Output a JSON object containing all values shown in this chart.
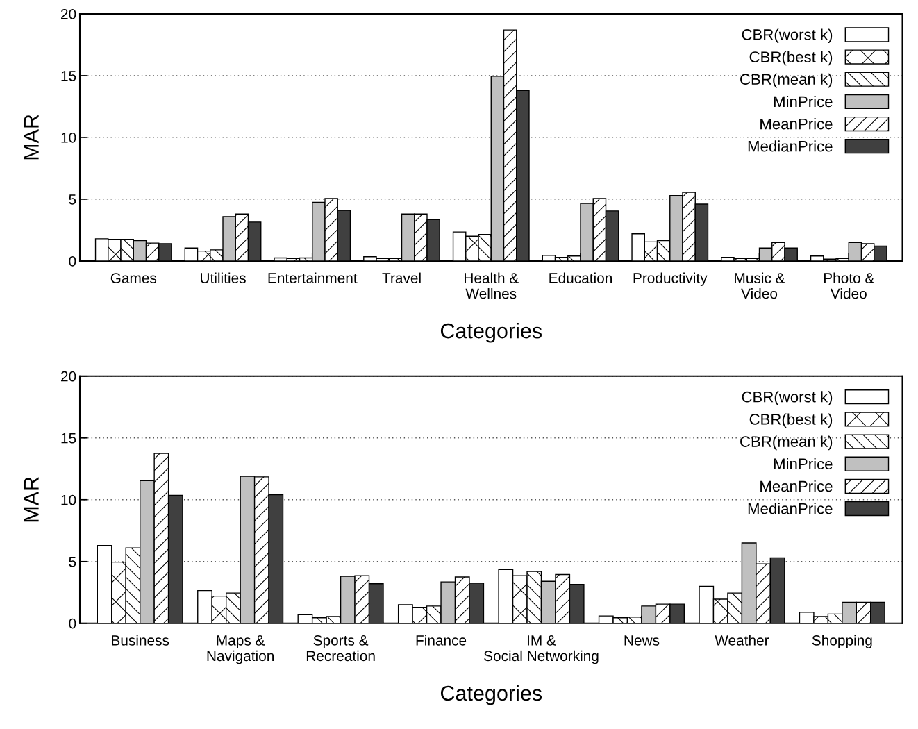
{
  "chart_data": [
    {
      "type": "bar",
      "xlabel": "Categories",
      "ylabel": "MAR",
      "categories": [
        "Games",
        "Utilities",
        "Entertainment",
        "Travel",
        "Health &\nWellnes",
        "Education",
        "Productivity",
        "Music &\nVideo",
        "Photo &\nVideo"
      ],
      "series": [
        {
          "name": "CBR(worst k)",
          "color": "#ffffff",
          "values": [
            1.8,
            1.05,
            0.25,
            0.35,
            2.35,
            0.45,
            2.2,
            0.3,
            0.4
          ]
        },
        {
          "name": "CBR(best k)",
          "color": "#000000",
          "values": [
            1.75,
            0.8,
            0.2,
            0.2,
            2.0,
            0.3,
            1.55,
            0.2,
            0.15
          ]
        },
        {
          "name": "CBR(mean k)",
          "color": "#000000",
          "values": [
            1.75,
            0.9,
            0.25,
            0.2,
            2.15,
            0.4,
            1.65,
            0.2,
            0.2
          ]
        },
        {
          "name": "MinPrice",
          "color": "#c0c0c0",
          "values": [
            1.65,
            3.6,
            4.75,
            3.8,
            14.95,
            4.65,
            5.3,
            1.05,
            1.5
          ]
        },
        {
          "name": "MeanPrice",
          "color": "#000000",
          "values": [
            1.45,
            3.8,
            5.05,
            3.8,
            18.7,
            5.05,
            5.55,
            1.5,
            1.4
          ]
        },
        {
          "name": "MedianPrice",
          "color": "#404040",
          "values": [
            1.4,
            3.15,
            4.1,
            3.35,
            13.8,
            4.05,
            4.6,
            1.05,
            1.2
          ]
        }
      ],
      "ylim": [
        0,
        20
      ],
      "yticks": [
        0,
        5,
        10,
        15,
        20
      ],
      "grid": "y",
      "legend": "top right"
    },
    {
      "type": "bar",
      "xlabel": "Categories",
      "ylabel": "MAR",
      "categories": [
        "Business",
        "Maps &\nNavigation",
        "Sports &\nRecreation",
        "Finance",
        "IM &\nSocial Networking",
        "News",
        "Weather",
        "Shopping"
      ],
      "series": [
        {
          "name": "CBR(worst k)",
          "color": "#ffffff",
          "values": [
            6.3,
            2.65,
            0.7,
            1.5,
            4.35,
            0.6,
            3.0,
            0.9
          ]
        },
        {
          "name": "CBR(best k)",
          "color": "#000000",
          "values": [
            4.95,
            2.2,
            0.45,
            1.3,
            3.85,
            0.45,
            1.95,
            0.55
          ]
        },
        {
          "name": "CBR(mean k)",
          "color": "#000000",
          "values": [
            6.1,
            2.45,
            0.55,
            1.4,
            4.2,
            0.5,
            2.45,
            0.75
          ]
        },
        {
          "name": "MinPrice",
          "color": "#c0c0c0",
          "values": [
            11.55,
            11.9,
            3.8,
            3.35,
            3.4,
            1.4,
            6.5,
            1.7
          ]
        },
        {
          "name": "MeanPrice",
          "color": "#000000",
          "values": [
            13.75,
            11.85,
            3.85,
            3.75,
            3.95,
            1.55,
            4.8,
            1.7
          ]
        },
        {
          "name": "MedianPrice",
          "color": "#404040",
          "values": [
            10.35,
            10.4,
            3.2,
            3.25,
            3.15,
            1.55,
            5.3,
            1.7
          ]
        }
      ],
      "ylim": [
        0,
        20
      ],
      "yticks": [
        0,
        5,
        10,
        15,
        20
      ],
      "grid": "y",
      "legend": "top right"
    }
  ]
}
